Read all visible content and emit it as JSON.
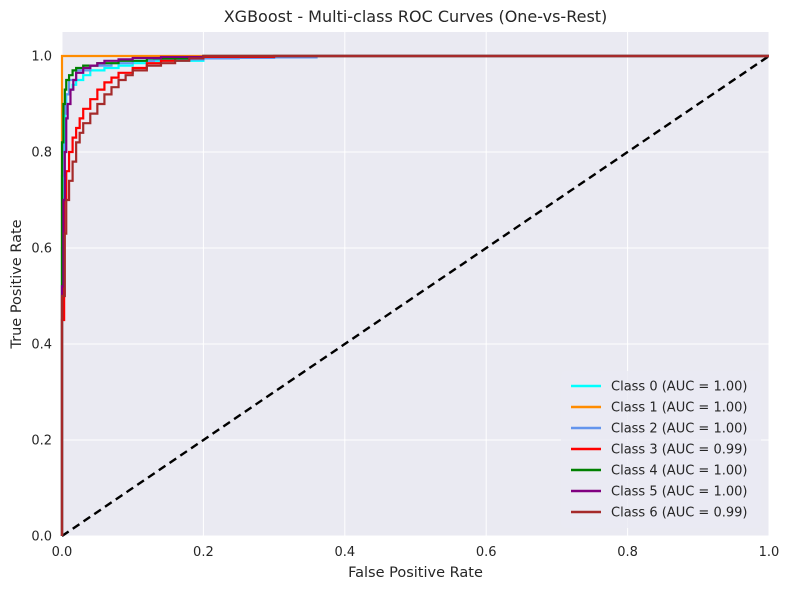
{
  "chart_data": {
    "type": "line",
    "title": "XGBoost - Multi-class ROC Curves (One-vs-Rest)",
    "xlabel": "False Positive Rate",
    "ylabel": "True Positive Rate",
    "xlim": [
      0.0,
      1.0
    ],
    "ylim": [
      0.0,
      1.05
    ],
    "xticks": [
      "0.0",
      "0.2",
      "0.4",
      "0.6",
      "0.8",
      "1.0"
    ],
    "yticks": [
      "0.0",
      "0.2",
      "0.4",
      "0.6",
      "0.8",
      "1.0"
    ],
    "grid": true,
    "legend_position": "lower-right",
    "background": "#eaeaf2",
    "series": [
      {
        "name": "Class 0 (AUC = 1.00)",
        "color": "#00ffff",
        "x": [
          0.0,
          0.0,
          0.002,
          0.004,
          0.006,
          0.01,
          0.015,
          0.02,
          0.03,
          0.04,
          0.06,
          0.08,
          0.1,
          0.12,
          0.2,
          1.0
        ],
        "y": [
          0.0,
          0.6,
          0.8,
          0.88,
          0.92,
          0.93,
          0.94,
          0.95,
          0.96,
          0.97,
          0.975,
          0.98,
          0.985,
          0.99,
          1.0,
          1.0
        ]
      },
      {
        "name": "Class 1 (AUC = 1.00)",
        "color": "#ff8c00",
        "x": [
          0.0,
          0.0,
          0.0,
          1.0
        ],
        "y": [
          0.0,
          0.98,
          1.0,
          1.0
        ]
      },
      {
        "name": "Class 2 (AUC = 1.00)",
        "color": "#6495ed",
        "x": [
          0.0,
          0.0,
          0.002,
          0.005,
          0.01,
          0.02,
          0.04,
          0.07,
          0.1,
          0.13,
          0.2,
          0.25,
          0.3,
          0.36,
          0.36,
          1.0
        ],
        "y": [
          0.0,
          0.75,
          0.88,
          0.92,
          0.95,
          0.97,
          0.98,
          0.985,
          0.99,
          0.993,
          0.995,
          0.996,
          0.997,
          0.997,
          1.0,
          1.0
        ]
      },
      {
        "name": "Class 3 (AUC = 0.99)",
        "color": "#ff0000",
        "x": [
          0.0,
          0.0,
          0.003,
          0.006,
          0.01,
          0.015,
          0.02,
          0.025,
          0.03,
          0.04,
          0.05,
          0.06,
          0.07,
          0.08,
          0.1,
          0.12,
          0.14,
          0.16,
          0.2,
          0.3,
          1.0
        ],
        "y": [
          0.0,
          0.45,
          0.7,
          0.76,
          0.8,
          0.83,
          0.85,
          0.87,
          0.89,
          0.91,
          0.93,
          0.945,
          0.955,
          0.965,
          0.975,
          0.985,
          0.99,
          0.995,
          0.998,
          1.0,
          1.0
        ]
      },
      {
        "name": "Class 4 (AUC = 1.00)",
        "color": "#008000",
        "x": [
          0.0,
          0.0,
          0.002,
          0.004,
          0.006,
          0.01,
          0.015,
          0.02,
          0.03,
          0.05,
          0.08,
          0.12,
          0.2,
          1.0
        ],
        "y": [
          0.0,
          0.82,
          0.9,
          0.93,
          0.95,
          0.96,
          0.97,
          0.975,
          0.98,
          0.985,
          0.99,
          0.995,
          1.0,
          1.0
        ]
      },
      {
        "name": "Class 5 (AUC = 1.00)",
        "color": "#800080",
        "x": [
          0.0,
          0.0,
          0.002,
          0.004,
          0.006,
          0.008,
          0.012,
          0.016,
          0.02,
          0.03,
          0.04,
          0.05,
          0.06,
          0.08,
          0.1,
          0.14,
          0.2,
          1.0
        ],
        "y": [
          0.0,
          0.52,
          0.7,
          0.8,
          0.87,
          0.9,
          0.93,
          0.95,
          0.965,
          0.975,
          0.98,
          0.985,
          0.99,
          0.993,
          0.996,
          0.998,
          1.0,
          1.0
        ]
      },
      {
        "name": "Class 6 (AUC = 0.99)",
        "color": "#a52a2a",
        "x": [
          0.0,
          0.0,
          0.0,
          0.004,
          0.006,
          0.01,
          0.015,
          0.02,
          0.025,
          0.03,
          0.04,
          0.05,
          0.06,
          0.07,
          0.08,
          0.09,
          0.1,
          0.12,
          0.14,
          0.16,
          0.18,
          0.2,
          1.0
        ],
        "y": [
          0.0,
          0.31,
          0.5,
          0.63,
          0.7,
          0.74,
          0.78,
          0.82,
          0.84,
          0.86,
          0.88,
          0.9,
          0.92,
          0.935,
          0.95,
          0.96,
          0.97,
          0.98,
          0.985,
          0.99,
          0.995,
          1.0,
          1.0
        ]
      }
    ],
    "reference_line": {
      "style": "dashed",
      "color": "#000000",
      "x": [
        0.0,
        1.0
      ],
      "y": [
        0.0,
        1.0
      ]
    }
  }
}
